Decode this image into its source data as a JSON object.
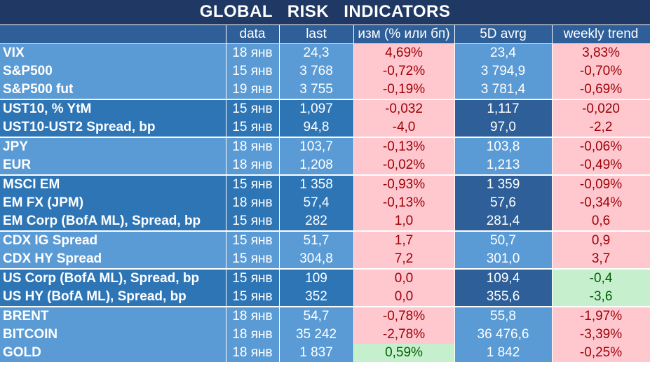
{
  "title": "GLOBAL   RISK   INDICATORS",
  "headers": [
    "",
    "data",
    "last",
    "изм (% или бп)",
    "5D avrg",
    "weekly trend"
  ],
  "rows": [
    {
      "name": "VIX",
      "date": "18 янв",
      "last": "24,3",
      "chg": "4,69%",
      "avg": "23,4",
      "trend": "3,83%",
      "chg_color": "neg",
      "trend_color": "neg",
      "shade": "light",
      "group_first": false
    },
    {
      "name": "S&P500",
      "date": "15 янв",
      "last": "3 768",
      "chg": "-0,72%",
      "avg": "3 794,9",
      "trend": "-0,70%",
      "chg_color": "neg",
      "trend_color": "neg",
      "shade": "light",
      "group_first": false
    },
    {
      "name": "S&P500 fut",
      "date": "19 янв",
      "last": "3 755",
      "chg": "-0,19%",
      "avg": "3 781,4",
      "trend": "-0,69%",
      "chg_color": "neg",
      "trend_color": "neg",
      "shade": "light",
      "group_first": false
    },
    {
      "name": "UST10, % YtM",
      "date": "15 янв",
      "last": "1,097",
      "chg": "-0,032",
      "avg": "1,117",
      "trend": "-0,020",
      "chg_color": "neg",
      "trend_color": "neg",
      "shade": "dark",
      "group_first": true
    },
    {
      "name": "UST10-UST2 Spread, bp",
      "date": "15 янв",
      "last": "94,8",
      "chg": "-4,0",
      "avg": "97,0",
      "trend": "-2,2",
      "chg_color": "neg",
      "trend_color": "neg",
      "shade": "dark",
      "group_first": false
    },
    {
      "name": "JPY",
      "date": "18 янв",
      "last": "103,7",
      "chg": "-0,13%",
      "avg": "103,8",
      "trend": "-0,06%",
      "chg_color": "neg",
      "trend_color": "neg",
      "shade": "light",
      "group_first": true
    },
    {
      "name": "EUR",
      "date": "18 янв",
      "last": "1,208",
      "chg": "-0,02%",
      "avg": "1,213",
      "trend": "-0,49%",
      "chg_color": "neg",
      "trend_color": "neg",
      "shade": "light",
      "group_first": false
    },
    {
      "name": "MSCI EM",
      "date": "15 янв",
      "last": "1 358",
      "chg": "-0,93%",
      "avg": "1 359",
      "trend": "-0,09%",
      "chg_color": "neg",
      "trend_color": "neg",
      "shade": "dark",
      "group_first": true
    },
    {
      "name": "EM FX (JPM)",
      "date": "18 янв",
      "last": "57,4",
      "chg": "-0,13%",
      "avg": "57,6",
      "trend": "-0,34%",
      "chg_color": "neg",
      "trend_color": "neg",
      "shade": "dark",
      "group_first": false
    },
    {
      "name": "EM Corp (BofA ML), Spread, bp",
      "date": "15 янв",
      "last": "282",
      "chg": "1,0",
      "avg": "281,4",
      "trend": "0,6",
      "chg_color": "neg",
      "trend_color": "neg",
      "shade": "dark",
      "group_first": false
    },
    {
      "name": "CDX IG Spread",
      "date": "15 янв",
      "last": "51,7",
      "chg": "1,7",
      "avg": "50,7",
      "trend": "0,9",
      "chg_color": "neg",
      "trend_color": "neg",
      "shade": "light",
      "group_first": true
    },
    {
      "name": "CDX HY Spread",
      "date": "15 янв",
      "last": "304,8",
      "chg": "7,2",
      "avg": "301,0",
      "trend": "3,7",
      "chg_color": "neg",
      "trend_color": "neg",
      "shade": "light",
      "group_first": false
    },
    {
      "name": "US Corp (BofA ML), Spread, bp",
      "date": "15 янв",
      "last": "109",
      "chg": "0,0",
      "avg": "109,4",
      "trend": "-0,4",
      "chg_color": "neg",
      "trend_color": "pos",
      "shade": "dark",
      "group_first": true
    },
    {
      "name": "US HY (BofA ML), Spread, bp",
      "date": "15 янв",
      "last": "352",
      "chg": "0,0",
      "avg": "355,6",
      "trend": "-3,6",
      "chg_color": "neg",
      "trend_color": "pos",
      "shade": "dark",
      "group_first": false
    },
    {
      "name": "BRENT",
      "date": "18 янв",
      "last": "54,7",
      "chg": "-0,78%",
      "avg": "55,8",
      "trend": "-1,97%",
      "chg_color": "neg",
      "trend_color": "neg",
      "shade": "light",
      "group_first": true
    },
    {
      "name": "BITCOIN",
      "date": "18 янв",
      "last": "35 242",
      "chg": "-2,78%",
      "avg": "36 476,6",
      "trend": "-3,39%",
      "chg_color": "neg",
      "trend_color": "neg",
      "shade": "light",
      "group_first": false
    },
    {
      "name": "GOLD",
      "date": "18 янв",
      "last": "1 837",
      "chg": "0,59%",
      "avg": "1 842",
      "trend": "-0,25%",
      "chg_color": "pos",
      "trend_color": "neg",
      "shade": "light",
      "group_first": false
    }
  ]
}
